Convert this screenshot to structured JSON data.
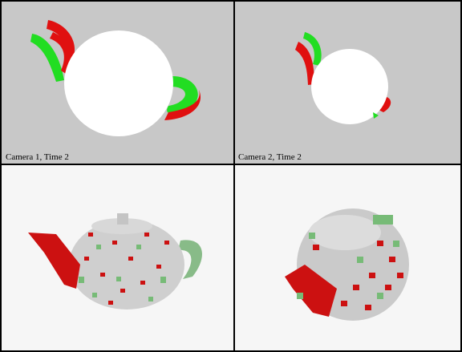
{
  "panels": [
    {
      "label": "Camera 1, Time 2"
    },
    {
      "label": "Camera 2, Time 2"
    }
  ]
}
